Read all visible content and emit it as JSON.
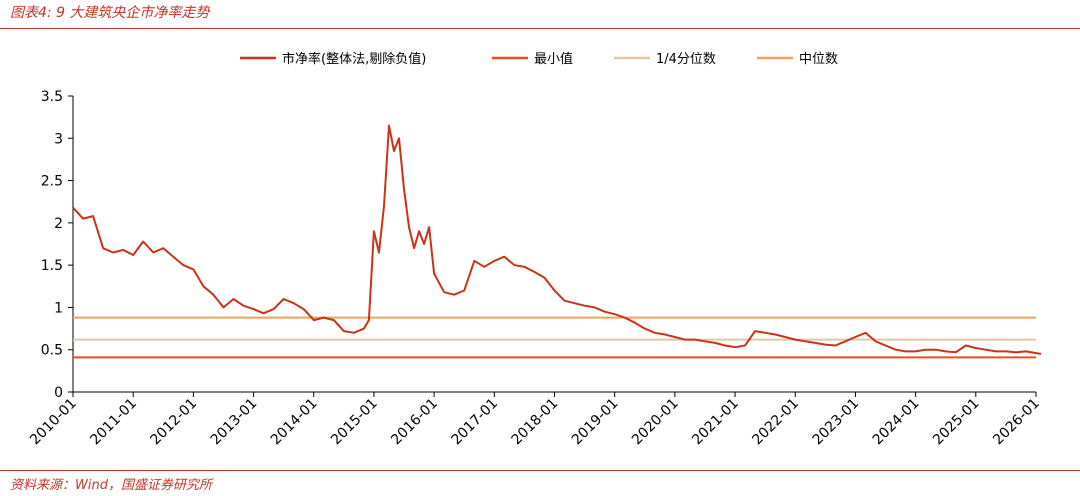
{
  "header": {
    "figure_title": "图表4:  9 大建筑央企市净率走势"
  },
  "footer": {
    "source": "资料来源：Wind，国盛证券研究所"
  },
  "colors": {
    "pb_series": "#c8341a",
    "min_line": "#e8501e",
    "q1_line": "#e2c7a6",
    "median_line": "#f0a35e",
    "axis": "#000000"
  },
  "chart_data": {
    "type": "line",
    "title": "",
    "xlabel": "",
    "ylabel": "",
    "ylim": [
      0,
      3.5
    ],
    "y_ticks": [
      "0",
      "0.5",
      "1",
      "1.5",
      "2",
      "2.5",
      "3",
      "3.5"
    ],
    "x_ticks": [
      "2010-01",
      "2011-01",
      "2012-01",
      "2013-01",
      "2014-01",
      "2015-01",
      "2016-01",
      "2017-01",
      "2018-01",
      "2019-01",
      "2020-01",
      "2021-01",
      "2022-01",
      "2023-01",
      "2024-01",
      "2025-01",
      "2026-01"
    ],
    "legend": {
      "placement": "top",
      "entries": [
        "市净率(整体法,剔除负值)",
        "最小值",
        "1/4分位数",
        "中位数"
      ]
    },
    "series": [
      {
        "name": "市净率(整体法,剔除负值)",
        "x": [
          "2010-01",
          "2010-03",
          "2010-05",
          "2010-07",
          "2010-09",
          "2010-11",
          "2011-01",
          "2011-03",
          "2011-05",
          "2011-07",
          "2011-09",
          "2011-11",
          "2012-01",
          "2012-03",
          "2012-05",
          "2012-07",
          "2012-09",
          "2012-11",
          "2013-01",
          "2013-03",
          "2013-05",
          "2013-07",
          "2013-09",
          "2013-11",
          "2014-01",
          "2014-03",
          "2014-05",
          "2014-07",
          "2014-09",
          "2014-11",
          "2014-12",
          "2015-01",
          "2015-02",
          "2015-03",
          "2015-04",
          "2015-05",
          "2015-06",
          "2015-07",
          "2015-08",
          "2015-09",
          "2015-10",
          "2015-11",
          "2015-12",
          "2016-01",
          "2016-03",
          "2016-05",
          "2016-07",
          "2016-09",
          "2016-11",
          "2017-01",
          "2017-03",
          "2017-05",
          "2017-07",
          "2017-09",
          "2017-11",
          "2018-01",
          "2018-03",
          "2018-05",
          "2018-07",
          "2018-09",
          "2018-11",
          "2019-01",
          "2019-03",
          "2019-05",
          "2019-07",
          "2019-09",
          "2019-11",
          "2020-01",
          "2020-03",
          "2020-05",
          "2020-07",
          "2020-09",
          "2020-11",
          "2021-01",
          "2021-03",
          "2021-05",
          "2021-07",
          "2021-09",
          "2021-11",
          "2022-01",
          "2022-03",
          "2022-05",
          "2022-07",
          "2022-09",
          "2022-11",
          "2023-01",
          "2023-03",
          "2023-05",
          "2023-07",
          "2023-09",
          "2023-11",
          "2024-01",
          "2024-03",
          "2024-05",
          "2024-07",
          "2024-09",
          "2024-11",
          "2025-01",
          "2025-03",
          "2025-05",
          "2025-07",
          "2025-09",
          "2025-11",
          "2026-01",
          "2026-02"
        ],
        "values": [
          2.18,
          2.05,
          2.08,
          1.7,
          1.65,
          1.68,
          1.62,
          1.78,
          1.65,
          1.7,
          1.6,
          1.5,
          1.45,
          1.25,
          1.15,
          1.0,
          1.1,
          1.02,
          0.98,
          0.93,
          0.98,
          1.1,
          1.05,
          0.98,
          0.85,
          0.88,
          0.85,
          0.72,
          0.7,
          0.75,
          0.85,
          1.9,
          1.65,
          2.2,
          3.15,
          2.85,
          3.0,
          2.4,
          1.95,
          1.7,
          1.9,
          1.75,
          1.95,
          1.4,
          1.18,
          1.15,
          1.2,
          1.55,
          1.48,
          1.55,
          1.6,
          1.5,
          1.48,
          1.42,
          1.35,
          1.2,
          1.08,
          1.05,
          1.02,
          1.0,
          0.95,
          0.92,
          0.88,
          0.82,
          0.75,
          0.7,
          0.68,
          0.65,
          0.62,
          0.62,
          0.6,
          0.58,
          0.55,
          0.53,
          0.55,
          0.72,
          0.7,
          0.68,
          0.65,
          0.62,
          0.6,
          0.58,
          0.56,
          0.55,
          0.6,
          0.65,
          0.7,
          0.6,
          0.55,
          0.5,
          0.48,
          0.48,
          0.5,
          0.5,
          0.48,
          0.47,
          0.55,
          0.52,
          0.5,
          0.48,
          0.48,
          0.47,
          0.48,
          0.46,
          0.45
        ],
        "color": "#c8341a"
      }
    ],
    "reference_lines": [
      {
        "name": "最小值",
        "value": 0.41,
        "color": "#e8501e"
      },
      {
        "name": "1/4分位数",
        "value": 0.62,
        "color": "#e2c7a6"
      },
      {
        "name": "中位数",
        "value": 0.88,
        "color": "#f0a35e"
      }
    ]
  }
}
